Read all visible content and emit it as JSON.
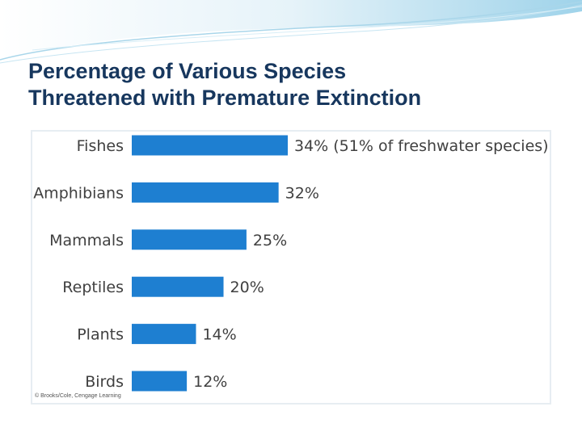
{
  "slide": {
    "title_line1": "Percentage of Various Species",
    "title_line2": "Threatened with Premature Extinction",
    "credit": "© Brooks/Cole, Cengage Learning"
  },
  "colors": {
    "title": "#17375e",
    "bar": "#1e7fd1",
    "label": "#404040",
    "frame_gradient": "#cfe7f3"
  },
  "chart_data": {
    "type": "bar",
    "orientation": "horizontal",
    "categories": [
      "Fishes",
      "Amphibians",
      "Mammals",
      "Reptiles",
      "Plants",
      "Birds"
    ],
    "values": [
      34,
      32,
      25,
      20,
      14,
      12
    ],
    "data_labels": [
      "34% (51% of freshwater species)",
      "32%",
      "25%",
      "20%",
      "14%",
      "12%"
    ],
    "xlim": [
      0,
      34
    ],
    "grid": false,
    "legend": "none"
  }
}
